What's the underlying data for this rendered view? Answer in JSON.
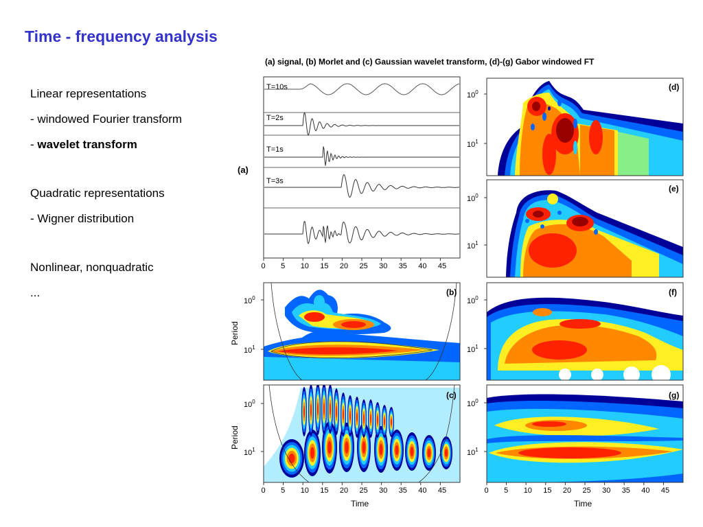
{
  "slide": {
    "title": "Time - frequency analysis",
    "caption": "(a) signal, (b) Morlet and (c) Gaussian wavelet transform, (d)-(g) Gabor windowed FT",
    "bullets": [
      {
        "text": "Linear representations"
      },
      {
        "text": "- windowed Fourier transform"
      },
      {
        "prefix": "- ",
        "bold": "wavelet transform"
      },
      {
        "text": "Quadratic representations"
      },
      {
        "text": "- Wigner distribution"
      },
      {
        "text": "Nonlinear, nonquadratic"
      },
      {
        "text": "..."
      }
    ]
  },
  "figure": {
    "panel_labels": {
      "a": "(a)",
      "b": "(b)",
      "c": "(c)",
      "d": "(d)",
      "e": "(e)",
      "f": "(f)",
      "g": "(g)"
    },
    "signal_labels": [
      "T=10s",
      "T=2s",
      "T=1s",
      "T=3s"
    ],
    "x_ticks": [
      "0",
      "5",
      "10",
      "15",
      "20",
      "25",
      "30",
      "35",
      "40",
      "45"
    ],
    "x_label": "Time",
    "y_label": "Period",
    "y_tick_base": "10",
    "y_tick_exps": [
      "0",
      "1"
    ],
    "colors": {
      "dark_red": "#990000",
      "red": "#ff2200",
      "orange": "#ff8800",
      "yellow": "#ffee22",
      "light_green": "#88ee88",
      "cyan": "#22ccff",
      "blue": "#0066ff",
      "navy": "#000099",
      "title_blue": "#3333cc"
    }
  }
}
